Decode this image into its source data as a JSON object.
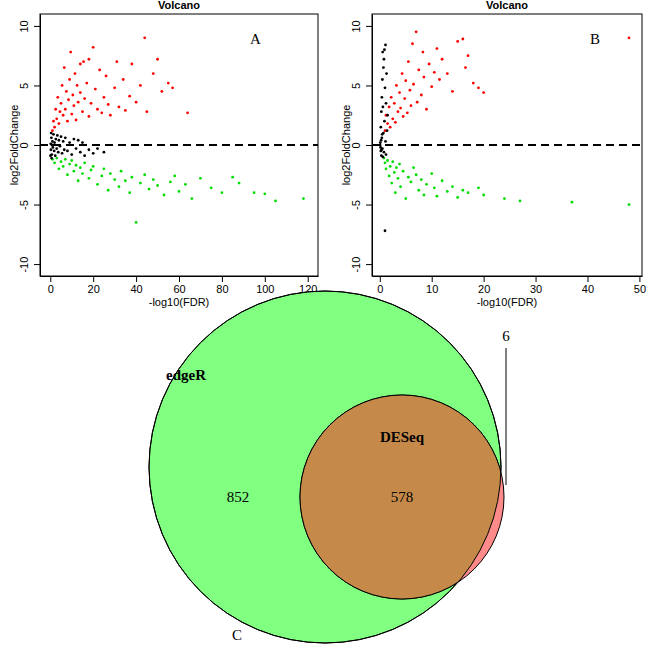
{
  "chart_data": [
    {
      "type": "scatter",
      "title": "Volcano",
      "annotations": [
        "A"
      ],
      "x_label": "-log10(FDR)",
      "y_label": "log2FoldChange",
      "xlim": [
        -4.8,
        124.8
      ],
      "ylim": [
        -11,
        11
      ],
      "xticks": [
        0,
        20,
        40,
        60,
        80,
        100,
        120
      ],
      "yticks": [
        -10,
        -5,
        0,
        5,
        10
      ],
      "hline": 0,
      "series": [
        {
          "color": "red",
          "x": [
            1,
            1.5,
            2,
            2.5,
            3,
            3.5,
            4,
            4.5,
            5,
            5.5,
            6,
            6.5,
            7,
            7.5,
            8,
            8.5,
            9,
            9.5,
            10,
            10.5,
            11,
            11.5,
            12,
            12.5,
            13,
            14,
            15,
            15.5,
            16,
            17,
            18,
            19,
            20,
            21,
            22,
            23,
            24,
            25,
            26,
            27,
            28,
            30,
            31,
            32,
            34,
            35,
            37,
            38,
            40,
            42,
            44,
            45,
            48,
            50,
            52,
            55,
            57,
            64,
            18,
            14
          ],
          "values": [
            1.2,
            2,
            1.5,
            3,
            2.2,
            4,
            1.8,
            2.8,
            3.5,
            5,
            2.5,
            6.5,
            3,
            4.5,
            2,
            3.8,
            5.5,
            7.8,
            2.6,
            4.2,
            3.3,
            6,
            2.1,
            5,
            3.6,
            4.4,
            2.8,
            7,
            3.9,
            5.2,
            2.4,
            3.5,
            8.2,
            4.7,
            3,
            6.3,
            2.7,
            4,
            5.8,
            3.4,
            2.5,
            4.8,
            7,
            3.2,
            5.5,
            2.9,
            4.1,
            6.8,
            3.6,
            5,
            9,
            2.8,
            6,
            7.2,
            4.5,
            5.2,
            4.8,
            2.7,
            7.2,
            6.8
          ]
        },
        {
          "color": "#00dd00",
          "x": [
            1,
            2,
            3,
            4,
            5,
            6,
            7,
            8,
            9,
            10,
            11,
            12,
            13,
            14,
            15,
            16,
            18,
            19,
            20,
            22,
            24,
            25,
            27,
            28,
            30,
            32,
            33,
            35,
            37,
            38,
            40,
            42,
            44,
            46,
            48,
            50,
            53,
            56,
            58,
            60,
            63,
            66,
            70,
            75,
            80,
            85,
            88,
            95,
            100,
            105,
            118
          ],
          "values": [
            -1.2,
            -1.5,
            -1.1,
            -2,
            -1.4,
            -1.8,
            -1.2,
            -2.5,
            -1.6,
            -1.3,
            -2.2,
            -1.7,
            -3,
            -1.9,
            -2.4,
            -1.5,
            -2.8,
            -2.1,
            -1.8,
            -3.3,
            -2.6,
            -2,
            -3.8,
            -2.4,
            -2.9,
            -3.5,
            -2.2,
            -3,
            -4,
            -2.7,
            -6.5,
            -3.2,
            -2.5,
            -3.7,
            -2.9,
            -3.4,
            -4.2,
            -3.1,
            -2.6,
            -3.9,
            -3.3,
            -4.5,
            -2.8,
            -3.6,
            -4,
            -2.7,
            -3.2,
            -4,
            -4.1,
            -4.7,
            -4.5
          ]
        },
        {
          "color": "black",
          "x": [
            0.2,
            0.3,
            0.5,
            0.7,
            1,
            1.2,
            1.5,
            1.8,
            2,
            2.3,
            2.6,
            3,
            3.3,
            3.7,
            4,
            4.5,
            5,
            5.5,
            6,
            6.5,
            7,
            8,
            9,
            10,
            11,
            12,
            13,
            14,
            15,
            16,
            18,
            20,
            22,
            25,
            0.1,
            0.4,
            0.6,
            0.8
          ],
          "values": [
            0.1,
            -0.4,
            0.6,
            -0.8,
            0.3,
            -0.2,
            0.9,
            -0.5,
            0.2,
            -0.9,
            0.5,
            -0.3,
            0.8,
            -0.6,
            0.4,
            -0.1,
            0.7,
            -0.7,
            0.3,
            -0.4,
            0.6,
            -0.5,
            0.2,
            -0.8,
            0.5,
            -0.3,
            0.4,
            -0.6,
            0.2,
            -0.9,
            -0.4,
            -0.7,
            -0.3,
            -0.6,
            -0.9,
            1.0,
            -1.1,
            0.0
          ]
        }
      ]
    },
    {
      "type": "scatter",
      "title": "Volcano",
      "annotations": [
        "B"
      ],
      "x_label": "-log10(FDR)",
      "y_label": "log2FoldChange",
      "xlim": [
        -1.5,
        50.5
      ],
      "ylim": [
        -11,
        11
      ],
      "xticks": [
        0,
        10,
        20,
        30,
        40,
        50
      ],
      "yticks": [
        -10,
        -5,
        0,
        5,
        10
      ],
      "hline": 0,
      "series": [
        {
          "color": "red",
          "x": [
            1,
            1.2,
            1.5,
            1.8,
            2,
            2.2,
            2.5,
            2.8,
            3,
            3.2,
            3.5,
            3.8,
            4,
            4.3,
            4.5,
            4.8,
            5,
            5.3,
            5.5,
            5.8,
            6,
            6.3,
            6.5,
            7,
            7.2,
            7.5,
            8,
            8.3,
            8.5,
            9,
            9.5,
            10,
            10.5,
            11,
            11.5,
            12,
            13,
            14,
            15,
            16,
            16.5,
            17,
            18,
            19,
            20,
            48
          ],
          "values": [
            1.2,
            2.5,
            1.8,
            3.2,
            1.5,
            4,
            2.2,
            3.5,
            1.9,
            5,
            2.8,
            4.4,
            3.1,
            6,
            2.4,
            3.9,
            5.4,
            2.7,
            7,
            4.6,
            3.3,
            8.5,
            5.1,
            9.5,
            3.6,
            6.3,
            4.2,
            7.8,
            5.7,
            3,
            6.8,
            4.9,
            6.1,
            8.1,
            5.5,
            7.2,
            6,
            4.5,
            8.7,
            8.9,
            6.5,
            7.5,
            5.2,
            4.8,
            4.4,
            9
          ]
        },
        {
          "color": "#00dd00",
          "x": [
            0.8,
            1,
            1.2,
            1.5,
            1.8,
            2,
            2.3,
            2.5,
            2.8,
            3,
            3.2,
            3.5,
            3.8,
            4,
            4.5,
            5,
            5.5,
            6,
            6.5,
            7,
            7.5,
            8,
            8.5,
            9,
            10,
            10.5,
            11,
            12,
            13,
            14,
            15,
            16,
            17,
            19,
            20,
            24,
            27,
            37,
            48
          ],
          "values": [
            -1.1,
            -1.5,
            -2,
            -1.3,
            -2.6,
            -1.8,
            -3.2,
            -1.4,
            -2.3,
            -4,
            -1.9,
            -2.8,
            -1.6,
            -3.5,
            -2.2,
            -4.5,
            -2.7,
            -3.1,
            -1.9,
            -2.5,
            -3.8,
            -2.9,
            -4.2,
            -3.3,
            -2.4,
            -3.6,
            -4.3,
            -3,
            -3.9,
            -3.5,
            -4.4,
            -3.8,
            -4,
            -3.6,
            -4.2,
            -4.5,
            -4.7,
            -4.8,
            -5
          ]
        },
        {
          "color": "black",
          "x": [
            0.1,
            0.2,
            0.2,
            0.3,
            0.3,
            0.4,
            0.4,
            0.5,
            0.5,
            0.6,
            0.6,
            0.7,
            0.7,
            0.8,
            0.8,
            0.9,
            0.9,
            1,
            1,
            1.1,
            1.1,
            1.2,
            1.2,
            1.3,
            1.4,
            0.05,
            0.15,
            0.25,
            0.35,
            0.45,
            1.5,
            0.55
          ],
          "values": [
            0.2,
            -0.5,
            1.5,
            2.8,
            -0.9,
            0.6,
            4,
            -0.3,
            5.5,
            3.2,
            -1,
            6.5,
            1,
            7.2,
            -0.6,
            2,
            8,
            4.8,
            -7.2,
            0.3,
            8.4,
            3.5,
            -0.8,
            6,
            1.2,
            0.0,
            -0.2,
            0.4,
            -0.4,
            0.9,
            2.5,
            7.8
          ]
        }
      ]
    },
    {
      "type": "venn",
      "annotations": [
        "C"
      ],
      "sets": [
        {
          "label": "edgeR",
          "color": "#80ff80"
        },
        {
          "label": "DESeq",
          "color": "#ff8a8a"
        }
      ],
      "regions": [
        {
          "value": 852
        },
        {
          "value": 578,
          "color": "#c58a4a"
        },
        {
          "value": 6
        }
      ]
    }
  ]
}
